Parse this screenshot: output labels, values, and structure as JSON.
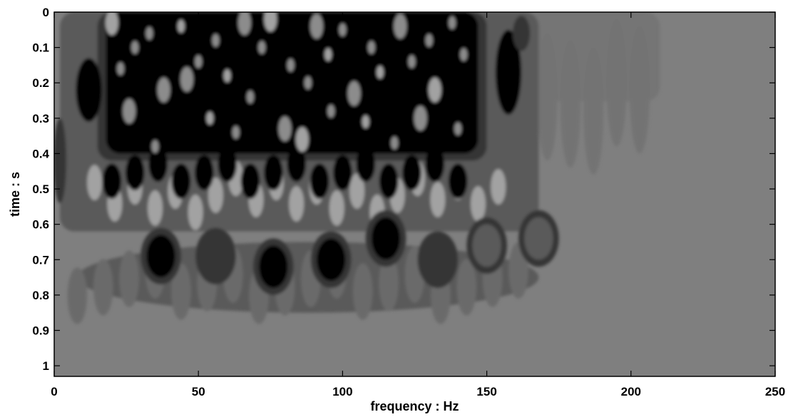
{
  "chart_data": {
    "type": "heatmap",
    "title": "",
    "xlabel": "frequency : Hz",
    "ylabel": "time : s",
    "xlim": [
      0,
      250
    ],
    "ylim": [
      1.03,
      0
    ],
    "y_direction": "reversed",
    "colormap": "grayscale (black = high magnitude, gray = background)",
    "grid": false,
    "legend": "none",
    "colors": {
      "background_gray": "#7f7f7f",
      "dark": "#050505",
      "mid_dark": "#353535",
      "mid": "#5a5a5a",
      "light": "#a2a2a2",
      "axis": "#000000"
    },
    "x_ticks": [
      {
        "value": 0,
        "label": "0"
      },
      {
        "value": 50,
        "label": "50"
      },
      {
        "value": 100,
        "label": "100"
      },
      {
        "value": 150,
        "label": "150"
      },
      {
        "value": 200,
        "label": "200"
      },
      {
        "value": 250,
        "label": "250"
      }
    ],
    "y_ticks": [
      {
        "value": 0,
        "label": "0"
      },
      {
        "value": 0.1,
        "label": "0.1"
      },
      {
        "value": 0.2,
        "label": "0.2"
      },
      {
        "value": 0.3,
        "label": "0.3"
      },
      {
        "value": 0.4,
        "label": "0.4"
      },
      {
        "value": 0.5,
        "label": "0.5"
      },
      {
        "value": 0.6,
        "label": "0.6"
      },
      {
        "value": 0.7,
        "label": "0.7"
      },
      {
        "value": 0.8,
        "label": "0.8"
      },
      {
        "value": 0.9,
        "label": "0.9"
      },
      {
        "value": 1,
        "label": "1"
      }
    ],
    "regions": {
      "description": "approximate extents of the visible energy regions, in Hz and s",
      "high_energy_main": {
        "x": [
          15,
          150
        ],
        "y": [
          0,
          0.5
        ],
        "level": "dark"
      },
      "high_energy_left_lobe": {
        "x": [
          8,
          16
        ],
        "y": [
          0.14,
          0.3
        ],
        "level": "dark"
      },
      "high_energy_right_lobe": {
        "x": [
          153,
          162
        ],
        "y": [
          0.06,
          0.28
        ],
        "level": "dark"
      },
      "surrounding_band": {
        "x": [
          2,
          168
        ],
        "y": [
          0,
          0.82
        ],
        "level": "mid"
      },
      "late_components": [
        {
          "x": 37,
          "y": 0.69,
          "level": "dark"
        },
        {
          "x": 56,
          "y": 0.69,
          "level": "mid_dark"
        },
        {
          "x": 76,
          "y": 0.72,
          "level": "dark"
        },
        {
          "x": 96,
          "y": 0.7,
          "level": "dark"
        },
        {
          "x": 115,
          "y": 0.64,
          "level": "dark"
        },
        {
          "x": 133,
          "y": 0.7,
          "level": "mid_dark"
        },
        {
          "x": 150,
          "y": 0.66,
          "level": "mid"
        },
        {
          "x": 168,
          "y": 0.64,
          "level": "mid"
        }
      ],
      "faint_tail": {
        "x": [
          150,
          210
        ],
        "y": [
          0,
          0.42
        ],
        "level": "mid"
      }
    }
  }
}
